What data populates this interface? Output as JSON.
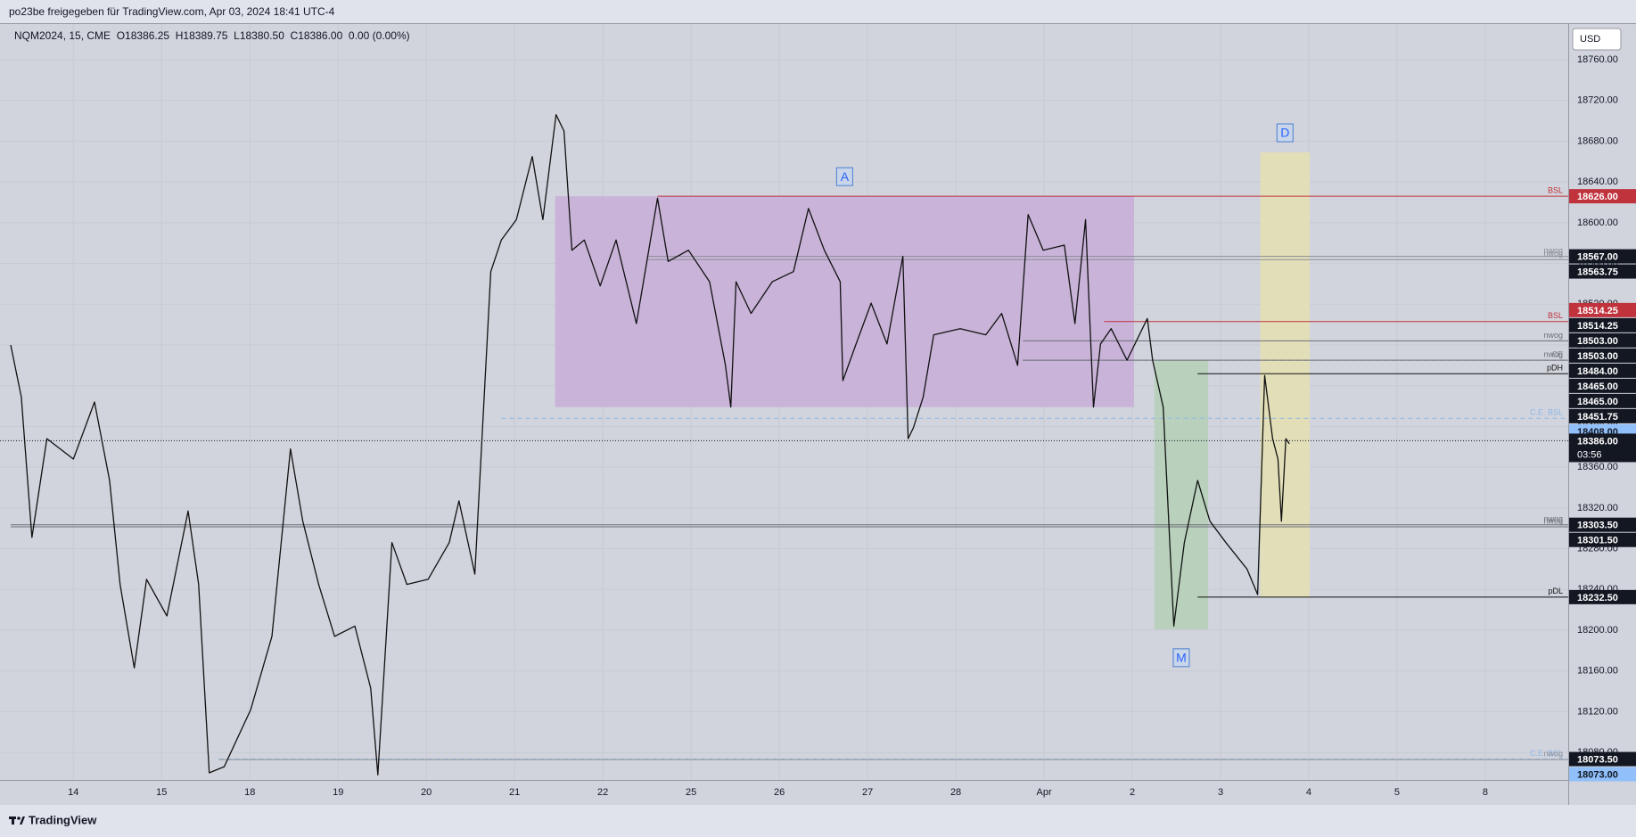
{
  "header": {
    "title": "po23be freigegeben für TradingView.com, Apr 03, 2024 18:41 UTC-4"
  },
  "footer": {
    "brand": "TradingView"
  },
  "chart_data": {
    "type": "line",
    "title": "NQM2024, 15, CME  O18386.25  H18389.75  L18380.50  C18386.00  0.00 (0.00%)",
    "currency": "USD",
    "grid": true,
    "xlim": [
      -0.71,
      16.94
    ],
    "ylim": [
      18053,
      18795
    ],
    "xticks": [
      {
        "value": 0,
        "label": "14"
      },
      {
        "value": 1,
        "label": "15"
      },
      {
        "value": 2,
        "label": "18"
      },
      {
        "value": 3,
        "label": "19"
      },
      {
        "value": 4,
        "label": "20"
      },
      {
        "value": 5,
        "label": "21"
      },
      {
        "value": 6,
        "label": "22"
      },
      {
        "value": 7,
        "label": "25"
      },
      {
        "value": 8,
        "label": "26"
      },
      {
        "value": 9,
        "label": "27"
      },
      {
        "value": 10,
        "label": "28"
      },
      {
        "value": 11,
        "label": "Apr"
      },
      {
        "value": 12,
        "label": "2"
      },
      {
        "value": 13,
        "label": "3"
      },
      {
        "value": 14,
        "label": "4"
      },
      {
        "value": 15,
        "label": "5"
      },
      {
        "value": 16,
        "label": "8"
      }
    ],
    "yticks": [
      {
        "value": 18080,
        "label": "18080.00"
      },
      {
        "value": 18120,
        "label": "18120.00"
      },
      {
        "value": 18160,
        "label": "18160.00"
      },
      {
        "value": 18200,
        "label": "18200.00"
      },
      {
        "value": 18240,
        "label": "18240.00"
      },
      {
        "value": 18280,
        "label": "18280.00"
      },
      {
        "value": 18320,
        "label": "18320.00"
      },
      {
        "value": 18360,
        "label": "18360.00"
      },
      {
        "value": 18400,
        "label": "18400.00"
      },
      {
        "value": 18440,
        "label": "18440.00"
      },
      {
        "value": 18480,
        "label": "18480.00"
      },
      {
        "value": 18520,
        "label": "18520.00"
      },
      {
        "value": 18560,
        "label": "18560.00"
      },
      {
        "value": 18600,
        "label": "18600.00"
      },
      {
        "value": 18640,
        "label": "18640.00"
      },
      {
        "value": 18680,
        "label": "18680.00"
      },
      {
        "value": 18720,
        "label": "18720.00"
      },
      {
        "value": 18760,
        "label": "18760.00"
      }
    ],
    "zones": [
      {
        "label": "A",
        "x": [
          5.46,
          12.02
        ],
        "y": [
          18419,
          18626
        ],
        "color": "#c9b3d9"
      },
      {
        "label": "M",
        "x": [
          12.25,
          12.86
        ],
        "y": [
          18201,
          18465
        ],
        "color": "#b8d0bc"
      },
      {
        "label": "D",
        "x": [
          13.45,
          14.01
        ],
        "y": [
          18232,
          18669
        ],
        "color": "#e2dfb8"
      }
    ],
    "levels": [
      {
        "label": "BSL",
        "value": 18626,
        "x_start": 6.62,
        "color": "#c0323c",
        "style": "solid"
      },
      {
        "label": "nwog",
        "value": 18567,
        "x_start": 6.5,
        "color": "#8a8d96",
        "style": "solid"
      },
      {
        "label": "nwog",
        "value": 18563.75,
        "x_start": 6.5,
        "color": "#8a8d96",
        "style": "solid"
      },
      {
        "label": "BSL",
        "value": 18503,
        "x_start": 11.68,
        "color": "#c0323c",
        "style": "solid"
      },
      {
        "label": "nwog",
        "value": 18484,
        "x_start": 10.76,
        "color": "#6b6e76",
        "style": "solid"
      },
      {
        "label": "CE",
        "value": 18465,
        "x_start": 10.76,
        "color": "#8a8d96",
        "style": "dashed"
      },
      {
        "label": "nwog",
        "value": 18465,
        "x_start": 10.76,
        "color": "#6b6e76",
        "style": "solid"
      },
      {
        "label": "pDH",
        "value": 18451.75,
        "x_start": 12.74,
        "color": "#111111",
        "style": "solid"
      },
      {
        "label": "C.E. BSL",
        "value": 18408,
        "x_start": 4.85,
        "color": "#8fb7e8",
        "style": "dashed"
      },
      {
        "label": "nwog",
        "value": 18303.5,
        "x_start": -0.71,
        "color": "#6b6e76",
        "style": "solid"
      },
      {
        "label": "nwog",
        "value": 18301.5,
        "x_start": -0.71,
        "color": "#6b6e76",
        "style": "solid"
      },
      {
        "label": "pDL",
        "value": 18232.5,
        "x_start": 12.74,
        "color": "#111111",
        "style": "solid"
      },
      {
        "label": "C.E. BSL",
        "value": 18073.5,
        "x_start": 1.65,
        "color": "#8fb7e8",
        "style": "dashed"
      },
      {
        "label": "nwog",
        "value": 18073,
        "x_start": 1.65,
        "color": "#8a8d96",
        "style": "solid"
      }
    ],
    "current": {
      "value": 18386,
      "label": "18386.00",
      "countdown": "03:56"
    },
    "badges": [
      {
        "value": 18626,
        "label": "18626.00",
        "color": "#c0323c"
      },
      {
        "value": 18567,
        "label": "18567.00",
        "color": "#131722"
      },
      {
        "value": 18563.75,
        "label": "18563.75",
        "color": "#131722"
      },
      {
        "value": 18514.25,
        "label": "18514.25",
        "color": "#c0323c"
      },
      {
        "value": 18514.25,
        "label": "18514.25",
        "color": "#131722"
      },
      {
        "value": 18503,
        "label": "18503.00",
        "color": "#131722"
      },
      {
        "value": 18503,
        "label": "18503.00",
        "color": "#131722"
      },
      {
        "value": 18484,
        "label": "18484.00",
        "color": "#131722"
      },
      {
        "value": 18465,
        "label": "18465.00",
        "color": "#131722"
      },
      {
        "value": 18465,
        "label": "18465.00",
        "color": "#131722"
      },
      {
        "value": 18451.75,
        "label": "18451.75",
        "color": "#131722"
      },
      {
        "value": 18408,
        "label": "18408.00",
        "color": "#90bff9"
      },
      {
        "value": 18303.5,
        "label": "18303.50",
        "color": "#131722"
      },
      {
        "value": 18301.5,
        "label": "18301.50",
        "color": "#131722"
      },
      {
        "value": 18232.5,
        "label": "18232.50",
        "color": "#131722"
      },
      {
        "value": 18073.5,
        "label": "18073.50",
        "color": "#131722"
      },
      {
        "value": 18073,
        "label": "18073.00",
        "color": "#90bff9"
      }
    ],
    "series": [
      {
        "name": "NQM2024",
        "color": "#111111",
        "x": [
          -0.71,
          -0.59,
          -0.47,
          -0.3,
          0,
          0.24,
          0.41,
          0.53,
          0.69,
          0.83,
          1.06,
          1.3,
          1.42,
          1.54,
          1.71,
          2.01,
          2.25,
          2.46,
          2.6,
          2.78,
          2.96,
          3.19,
          3.37,
          3.45,
          3.61,
          3.78,
          4.02,
          4.26,
          4.37,
          4.55,
          4.63,
          4.73,
          4.85,
          5.02,
          5.2,
          5.32,
          5.47,
          5.56,
          5.65,
          5.79,
          5.97,
          6.15,
          6.38,
          6.62,
          6.74,
          6.97,
          7.21,
          7.39,
          7.45,
          7.51,
          7.68,
          7.92,
          8.16,
          8.33,
          8.51,
          8.69,
          8.72,
          8.87,
          9.04,
          9.22,
          9.4,
          9.46,
          9.52,
          9.63,
          9.75,
          10.05,
          10.34,
          10.52,
          10.7,
          10.82,
          10.99,
          11.23,
          11.35,
          11.47,
          11.56,
          11.64,
          11.76,
          11.94,
          12.17,
          12.23,
          12.35,
          12.47,
          12.59,
          12.74,
          12.88,
          13.06,
          13.3,
          13.42,
          13.5,
          13.59,
          13.65,
          13.69,
          13.74,
          13.78
        ],
        "values": [
          18480,
          18429,
          18291,
          18388,
          18368,
          18424,
          18347,
          18245,
          18163,
          18250,
          18214,
          18317,
          18245,
          18060,
          18066,
          18122,
          18194,
          18378,
          18307,
          18245,
          18194,
          18204,
          18143,
          18058,
          18286,
          18245,
          18250,
          18286,
          18327,
          18255,
          18388,
          18552,
          18583,
          18603,
          18665,
          18603,
          18706,
          18690,
          18573,
          18583,
          18538,
          18583,
          18501,
          18624,
          18562,
          18573,
          18542,
          18460,
          18419,
          18542,
          18511,
          18542,
          18552,
          18614,
          18573,
          18542,
          18445,
          18481,
          18521,
          18481,
          18567,
          18388,
          18399,
          18429,
          18490,
          18496,
          18490,
          18511,
          18460,
          18608,
          18573,
          18578,
          18501,
          18603,
          18419,
          18481,
          18496,
          18465,
          18506,
          18465,
          18419,
          18204,
          18286,
          18347,
          18307,
          18286,
          18260,
          18235,
          18450,
          18388,
          18368,
          18307,
          18388,
          18383
        ]
      }
    ]
  }
}
